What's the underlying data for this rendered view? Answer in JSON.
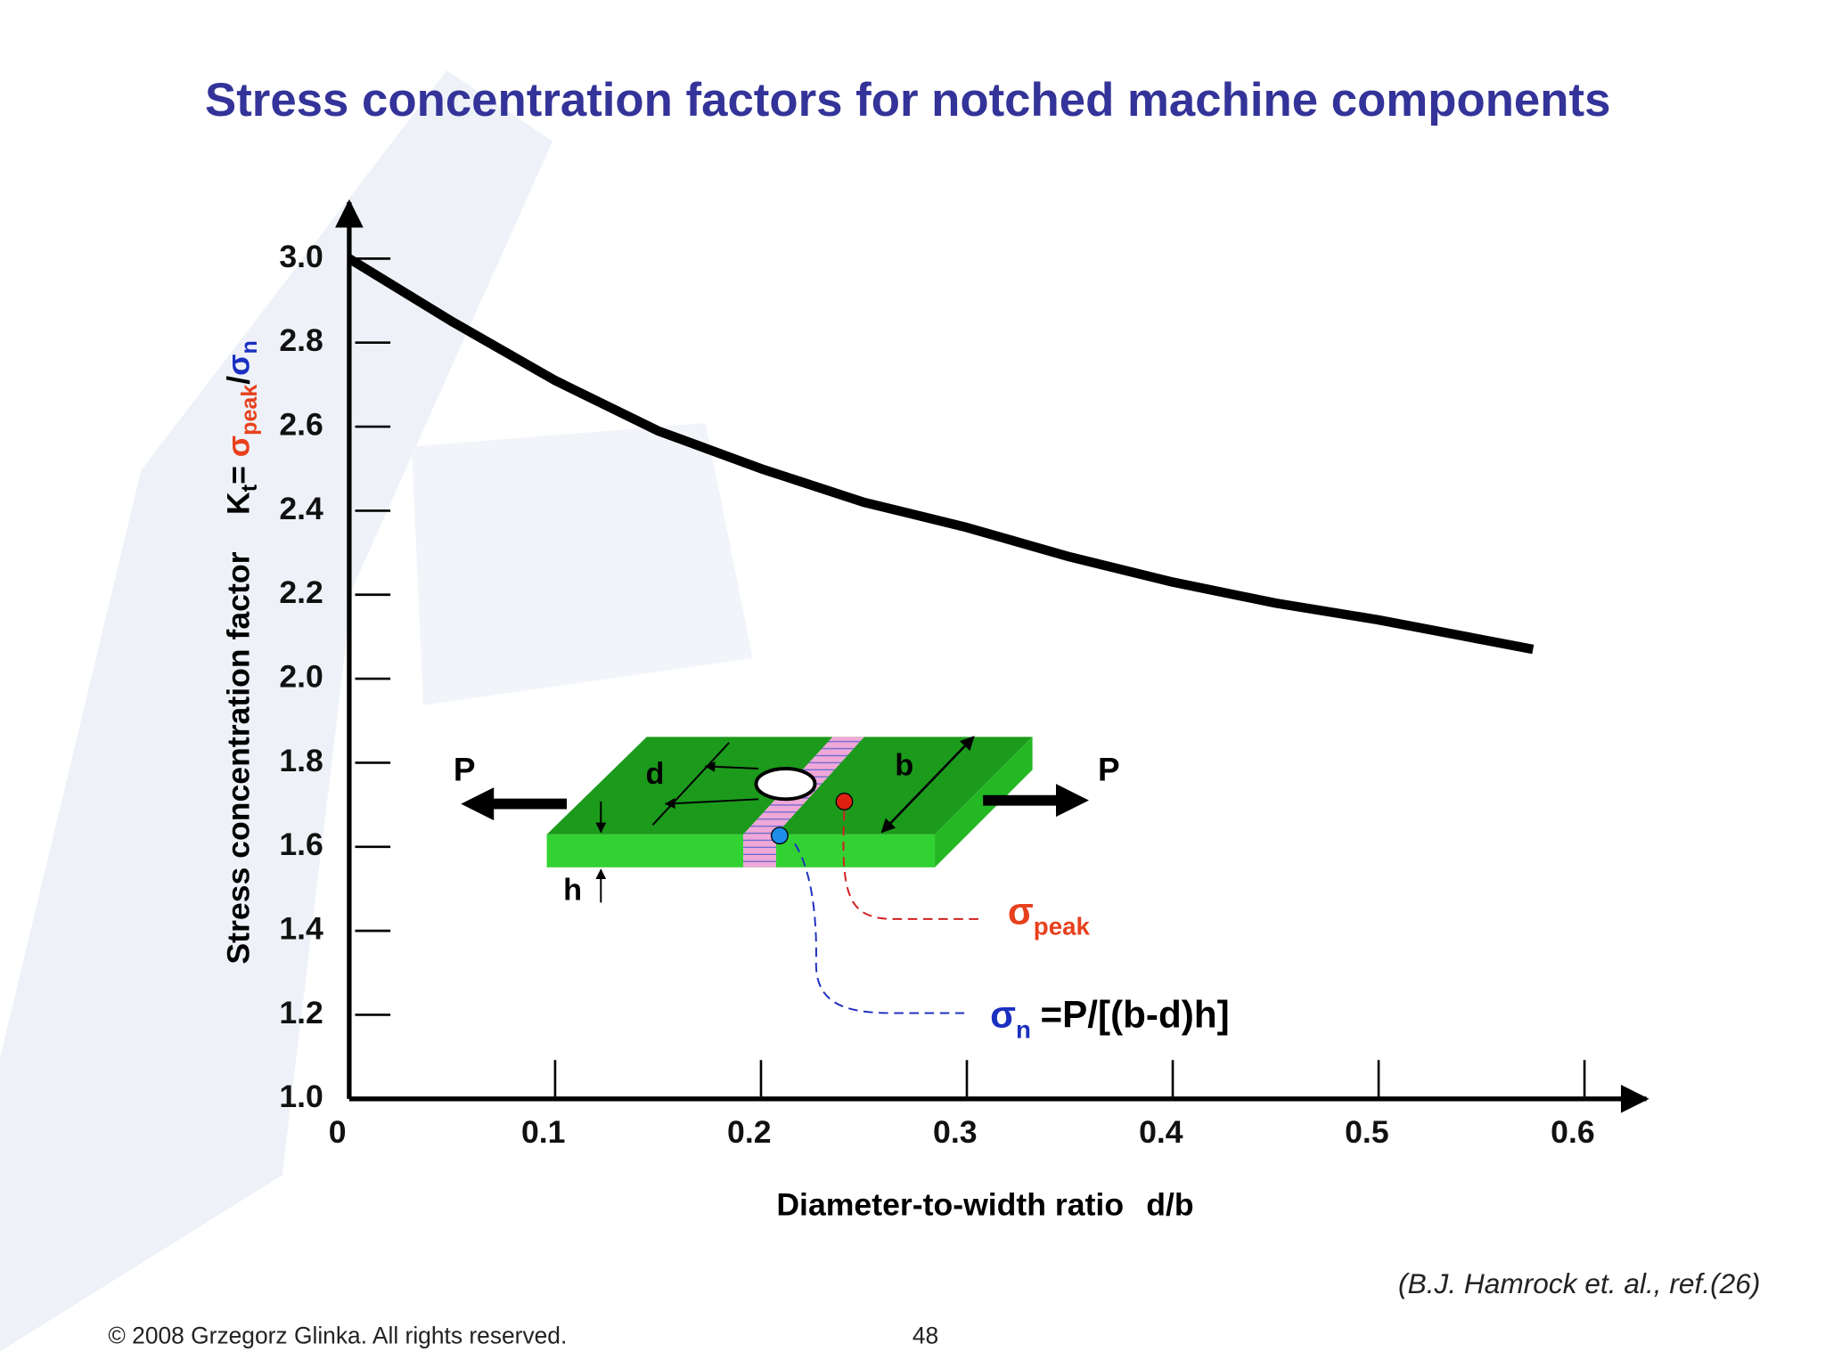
{
  "chart_data": {
    "type": "line",
    "title": "Stress concentration factors for notched machine components",
    "x_label": {
      "text": "Diameter-to-width ratio",
      "symbol": "d/b"
    },
    "y_label": {
      "text": "Stress concentration factor",
      "symbol": "K",
      "symbol_sub": "t",
      "equals": "=",
      "numerator": "σ",
      "numerator_sub": "peak",
      "slash": "/",
      "denominator": "σ",
      "denominator_sub": "n"
    },
    "x": [
      0,
      0.05,
      0.1,
      0.15,
      0.2,
      0.25,
      0.3,
      0.35,
      0.4,
      0.45,
      0.5,
      0.575
    ],
    "series": [
      {
        "color": "#000000",
        "values": [
          3.0,
          2.85,
          2.71,
          2.59,
          2.5,
          2.42,
          2.36,
          2.29,
          2.23,
          2.18,
          2.14,
          2.07
        ]
      }
    ],
    "xlim": [
      0,
      0.63
    ],
    "ylim": [
      1.0,
      3.14
    ],
    "xticks": [
      0,
      0.1,
      0.2,
      0.3,
      0.4,
      0.5,
      0.6
    ],
    "yticks": [
      {
        "value": 1.0,
        "label": "1.0"
      },
      {
        "value": 1.2,
        "label": "1.2"
      },
      {
        "value": 1.4,
        "label": "1.4"
      },
      {
        "value": 1.6,
        "label": "1.6"
      },
      {
        "value": 1.8,
        "label": "1.8"
      },
      {
        "value": 2.0,
        "label": "2.0"
      },
      {
        "value": 2.2,
        "label": "2.2"
      },
      {
        "value": 2.4,
        "label": "2.4"
      },
      {
        "value": 2.6,
        "label": "2.6"
      },
      {
        "value": 2.8,
        "label": "2.8"
      },
      {
        "value": 3.0,
        "label": "3.0"
      }
    ],
    "diagram": {
      "load_left": "P",
      "load_right": "P",
      "hole_diameter": "d",
      "width": "b",
      "thickness": "h",
      "peak_stress": {
        "symbol": "σ",
        "sub": "peak"
      },
      "nominal_stress": {
        "symbol": "σ",
        "sub": "n",
        "formula": "=P/[(b-d)h]"
      }
    },
    "source": "(B.J. Hamrock et. al., ref.(26)",
    "footer": {
      "copyright": "© 2008 Grzegorz Glinka.  All rights reserved.",
      "page_number": "48"
    }
  }
}
